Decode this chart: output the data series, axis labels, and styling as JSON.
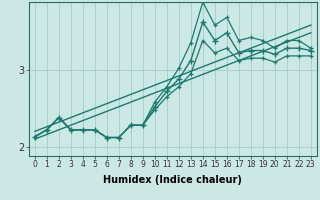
{
  "xlabel": "Humidex (Indice chaleur)",
  "ylabel": "",
  "background_color": "#cce8e5",
  "grid_color": "#aacfcb",
  "line_color": "#1a7a6e",
  "x": [
    0,
    1,
    2,
    3,
    4,
    5,
    6,
    7,
    8,
    9,
    10,
    11,
    12,
    13,
    14,
    15,
    16,
    17,
    18,
    19,
    20,
    21,
    22,
    23
  ],
  "y_main": [
    2.13,
    2.22,
    2.38,
    2.22,
    2.22,
    2.22,
    2.12,
    2.12,
    2.28,
    2.28,
    2.52,
    2.72,
    2.88,
    3.12,
    3.62,
    3.38,
    3.48,
    3.22,
    3.25,
    3.25,
    3.2,
    3.28,
    3.28,
    3.25
  ],
  "y_upper": [
    2.13,
    2.22,
    2.38,
    2.22,
    2.22,
    2.22,
    2.12,
    2.12,
    2.28,
    2.28,
    2.58,
    2.78,
    3.02,
    3.35,
    3.88,
    3.58,
    3.68,
    3.38,
    3.42,
    3.38,
    3.28,
    3.38,
    3.38,
    3.28
  ],
  "y_lower": [
    2.13,
    2.22,
    2.38,
    2.22,
    2.22,
    2.22,
    2.12,
    2.12,
    2.28,
    2.28,
    2.48,
    2.65,
    2.78,
    2.95,
    3.38,
    3.22,
    3.28,
    3.12,
    3.15,
    3.15,
    3.1,
    3.18,
    3.18,
    3.18
  ],
  "y_trend_upper": [
    2.2,
    2.26,
    2.32,
    2.38,
    2.44,
    2.5,
    2.56,
    2.62,
    2.68,
    2.74,
    2.8,
    2.86,
    2.92,
    2.98,
    3.04,
    3.1,
    3.16,
    3.22,
    3.28,
    3.34,
    3.4,
    3.46,
    3.52,
    3.58
  ],
  "y_trend_lower": [
    2.1,
    2.16,
    2.22,
    2.28,
    2.34,
    2.4,
    2.46,
    2.52,
    2.58,
    2.64,
    2.7,
    2.76,
    2.82,
    2.88,
    2.94,
    3.0,
    3.06,
    3.12,
    3.18,
    3.24,
    3.3,
    3.36,
    3.42,
    3.48
  ],
  "ylim": [
    1.88,
    3.88
  ],
  "yticks": [
    2,
    3
  ],
  "xlim": [
    -0.5,
    23.5
  ]
}
